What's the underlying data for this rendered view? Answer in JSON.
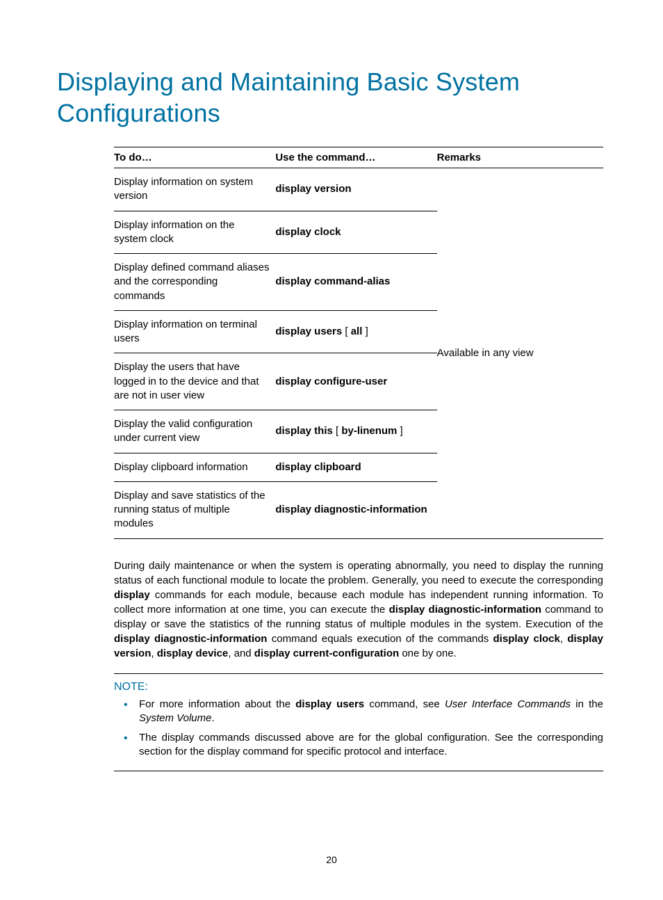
{
  "title": "Displaying and Maintaining Basic System Configurations",
  "table": {
    "headers": {
      "todo": "To do…",
      "cmd": "Use the command…",
      "remarks": "Remarks"
    },
    "remarks": "Available in any view",
    "rows": [
      {
        "todo": "Display information on system version",
        "cmd_html": "display version"
      },
      {
        "todo": "Display information on the system clock",
        "cmd_html": "display clock"
      },
      {
        "todo": "Display defined command aliases and the corresponding commands",
        "cmd_html": "display command-alias"
      },
      {
        "todo": "Display information on terminal users",
        "cmd_html": "display users",
        "opt": "all"
      },
      {
        "todo": "Display the users that have logged in to the device and that are not in user view",
        "cmd_html": "display configure-user"
      },
      {
        "todo": "Display the valid configuration under current view",
        "cmd_html": "display this",
        "opt": "by-linenum",
        "tall": true
      },
      {
        "todo": "Display clipboard information",
        "cmd_html": "display clipboard"
      },
      {
        "todo": "Display and save statistics of the running status of multiple modules",
        "cmd_html": "display diagnostic-information",
        "last": true
      }
    ]
  },
  "paragraph": {
    "p1a": "During daily maintenance or when the system is operating abnormally, you need to display the running status of each functional module to locate the problem. Generally, you need to execute the corresponding ",
    "b1": "display",
    "p1b": " commands for each module, because each module has independent running information. To collect more information at one time, you can execute the ",
    "b2": "display diagnostic-information",
    "p1c": " command to display or save the statistics of the running status of multiple modules in the system. Execution of the ",
    "b3": "display diagnostic-information",
    "p1d": " command equals execution of the commands ",
    "b4": "display clock",
    "c1": ", ",
    "b5": "display version",
    "c2": ", ",
    "b6": "display device",
    "c3": ", and ",
    "b7": "display current-configuration",
    "p1e": " one by one."
  },
  "note": {
    "label": "NOTE:",
    "items": [
      {
        "pre": "For more information about the ",
        "b": "display users",
        "mid": " command, see ",
        "i1": "User Interface Commands",
        "mid2": " in the ",
        "i2": "System Volume",
        "post": "."
      },
      {
        "text": "The display commands discussed above are for the global configuration. See the corresponding section for the display command for specific protocol and interface."
      }
    ]
  },
  "pagenum": "20",
  "colors": {
    "accent": "#0071a2",
    "text": "#000000",
    "bg": "#ffffff"
  }
}
